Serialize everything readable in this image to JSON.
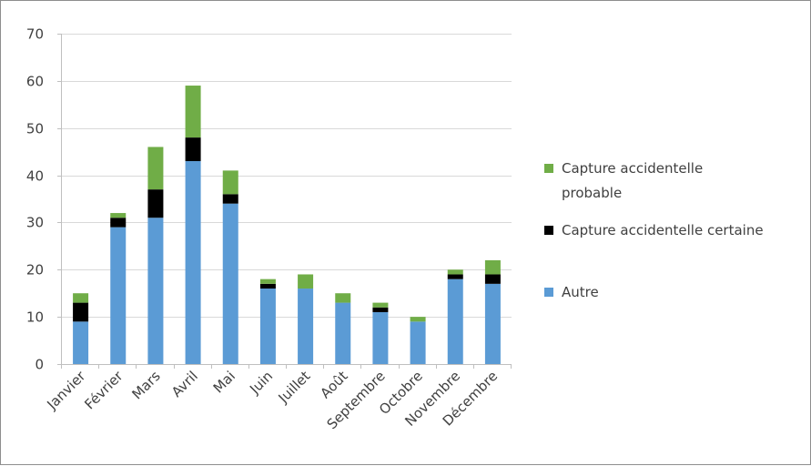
{
  "chart_data": {
    "type": "bar",
    "stacked": true,
    "categories": [
      "Janvier",
      "Février",
      "Mars",
      "Avril",
      "Mai",
      "Juin",
      "Juillet",
      "Août",
      "Septembre",
      "Octobre",
      "Novembre",
      "Décembre"
    ],
    "series": [
      {
        "name": "Autre",
        "color": "#5b9bd5",
        "values": [
          9,
          29,
          31,
          43,
          34,
          16,
          16,
          13,
          11,
          9,
          18,
          17
        ]
      },
      {
        "name": "Capture accidentelle certaine",
        "color": "#000000",
        "values": [
          4,
          2,
          6,
          5,
          2,
          1,
          0,
          0,
          1,
          0,
          1,
          2
        ]
      },
      {
        "name": "Capture accidentelle probable",
        "color": "#70ad47",
        "values": [
          2,
          1,
          9,
          11,
          5,
          1,
          3,
          2,
          1,
          1,
          1,
          3
        ]
      }
    ],
    "legend_lines": [
      [
        "Capture accidentelle",
        "probable"
      ],
      [
        "Capture accidentelle certaine"
      ],
      [
        "Autre"
      ]
    ],
    "yticks": [
      0,
      10,
      20,
      30,
      40,
      50,
      60,
      70
    ],
    "ylim": [
      0,
      70
    ],
    "grid": true,
    "legend_position": "right",
    "title": "",
    "xlabel": "",
    "ylabel": ""
  }
}
